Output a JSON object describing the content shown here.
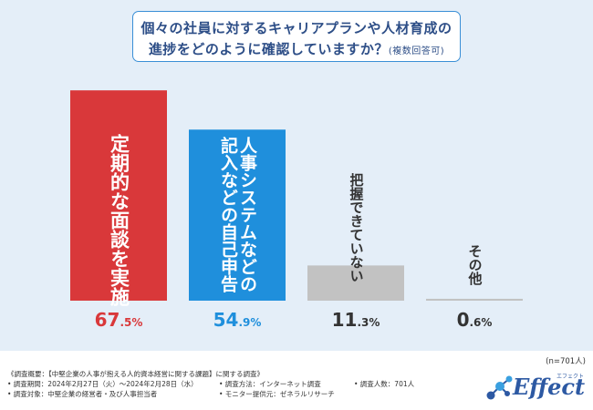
{
  "title": {
    "line1": "個々の社員に対するキャリアプランや人材育成の",
    "line2": "進捗をどのように確認していますか？",
    "note": "(複数回答可)"
  },
  "chart_data": {
    "type": "bar",
    "categories": [
      "定期的な面談を実施",
      "人事システムなどの記入などの自己申告",
      "把握できていない",
      "その他"
    ],
    "label_lines": [
      [
        "定期的な面談を実施"
      ],
      [
        "人事システムなどの",
        "記入などの自己申告"
      ],
      [
        "把握できていない"
      ],
      [
        "その他"
      ]
    ],
    "values": [
      67.5,
      54.9,
      11.3,
      0.6
    ],
    "value_labels": [
      {
        "int": "67",
        "dec": ".5%"
      },
      {
        "int": "54",
        "dec": ".9%"
      },
      {
        "int": "11",
        "dec": ".3%"
      },
      {
        "int": "0",
        "dec": ".6%"
      }
    ],
    "colors": [
      "#d9383a",
      "#1f8fdc",
      "#c2c2c2",
      "#c2c2c2"
    ],
    "label_colors": [
      "#ffffff",
      "#ffffff",
      "#333333",
      "#333333"
    ],
    "value_colors": [
      "#d9383a",
      "#1f8fdc",
      "#333333",
      "#333333"
    ],
    "ylim": [
      0,
      70
    ],
    "title": "",
    "xlabel": "",
    "ylabel": ""
  },
  "n_note": "(n=701人)",
  "survey": {
    "overview": "《調査概要：【中堅企業の人事が抱える人的資本経営に関する課題】に関する調査》",
    "period": "• 調査期間：2024年2月27日（火）～2024年2月28日（水）",
    "method": "• 調査方法：インターネット調査",
    "count": "• 調査人数：701人",
    "target": "• 調査対象：中堅企業の経営者・及び人事担当者",
    "provider": "• モニター提供元：ゼネラルリサーチ"
  },
  "logo": {
    "text": "Effect",
    "kana": "エフェクト"
  }
}
